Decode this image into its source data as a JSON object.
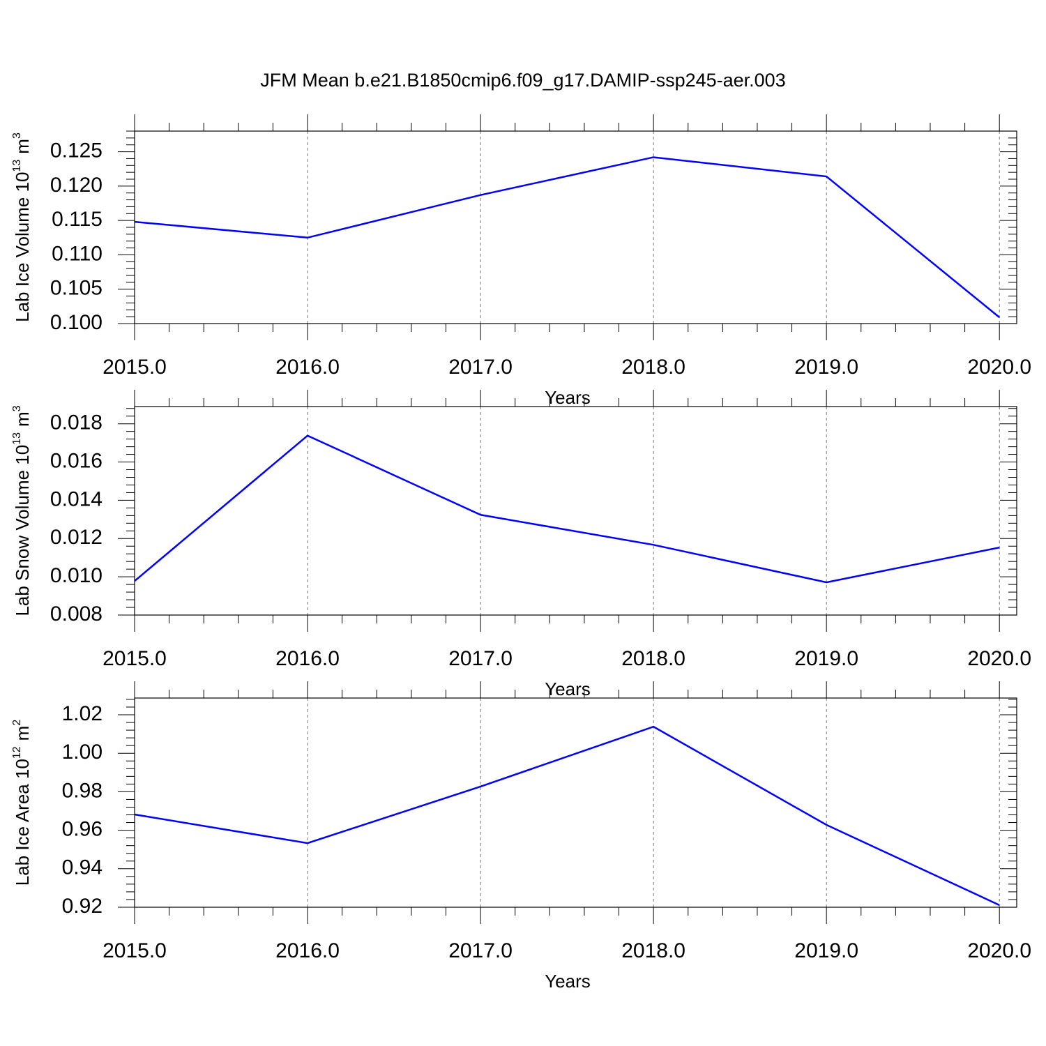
{
  "chart_data": [
    {
      "type": "line",
      "title": "JFM Mean b.e21.B1850cmip6.f09_g17.DAMIP-ssp245-aer.003",
      "xlabel": "Years",
      "ylabel": [
        "Lab Ice Volume 10",
        "13",
        "m",
        "3"
      ],
      "x": [
        2015,
        2016,
        2017,
        2018,
        2019,
        2020
      ],
      "series": [
        {
          "color": "#0000ff",
          "values": [
            0.1148,
            0.1125,
            0.1187,
            0.1242,
            0.1214,
            0.1009
          ]
        }
      ],
      "xlim": [
        2015,
        2020.1
      ],
      "xticks": [
        {
          "value": 2015,
          "label": "2015.0"
        },
        {
          "value": 2016,
          "label": "2016.0"
        },
        {
          "value": 2017,
          "label": "2017.0"
        },
        {
          "value": 2018,
          "label": "2018.0"
        },
        {
          "value": 2019,
          "label": "2019.0"
        },
        {
          "value": 2020,
          "label": "2020.0"
        }
      ],
      "ylim": [
        0.1,
        0.128
      ],
      "yticks": [
        {
          "value": 0.1,
          "label": "0.100"
        },
        0.105,
        {
          "value": 0.11,
          "label": "0.110"
        },
        0.115,
        {
          "value": 0.12,
          "label": "0.120"
        },
        0.125
      ],
      "grid": true
    },
    {
      "type": "line",
      "xlabel": "Years",
      "ylabel": [
        "Lab Snow Volume 10",
        "13",
        "m",
        "3"
      ],
      "x": [
        2015,
        2016,
        2017,
        2018,
        2019,
        2020
      ],
      "series": [
        {
          "color": "#0000ff",
          "values": [
            0.00978,
            0.01738,
            0.01324,
            0.01167,
            0.00971,
            0.01153
          ]
        }
      ],
      "xlim": [
        2015,
        2020.1
      ],
      "xticks": [
        {
          "value": 2015,
          "label": "2015.0"
        },
        {
          "value": 2016,
          "label": "2016.0"
        },
        {
          "value": 2017,
          "label": "2017.0"
        },
        {
          "value": 2018,
          "label": "2018.0"
        },
        {
          "value": 2019,
          "label": "2019.0"
        },
        {
          "value": 2020,
          "label": "2020.0"
        }
      ],
      "ylim": [
        0.008,
        0.0189
      ],
      "yticks": [
        0.008,
        {
          "value": 0.01,
          "label": "0.010"
        },
        0.012,
        0.014,
        0.016,
        0.018
      ],
      "grid": true
    },
    {
      "type": "line",
      "xlabel": "Years",
      "ylabel": [
        "Lab Ice Area 10",
        "12",
        "m",
        "2"
      ],
      "x": [
        2015,
        2016,
        2017,
        2018,
        2019,
        2020
      ],
      "series": [
        {
          "color": "#0000ff",
          "values": [
            0.9682,
            0.9533,
            0.9827,
            1.0138,
            0.9628,
            0.9211
          ]
        }
      ],
      "xlim": [
        2015,
        2020.1
      ],
      "xticks": [
        {
          "value": 2015,
          "label": "2015.0"
        },
        {
          "value": 2016,
          "label": "2016.0"
        },
        {
          "value": 2017,
          "label": "2017.0"
        },
        {
          "value": 2018,
          "label": "2018.0"
        },
        {
          "value": 2019,
          "label": "2019.0"
        },
        {
          "value": 2020,
          "label": "2020.0"
        }
      ],
      "ylim": [
        0.92,
        1.0287
      ],
      "yticks": [
        0.92,
        0.94,
        0.96,
        0.98,
        {
          "value": 1,
          "label": "1.00"
        },
        1.02
      ],
      "grid": true
    }
  ]
}
